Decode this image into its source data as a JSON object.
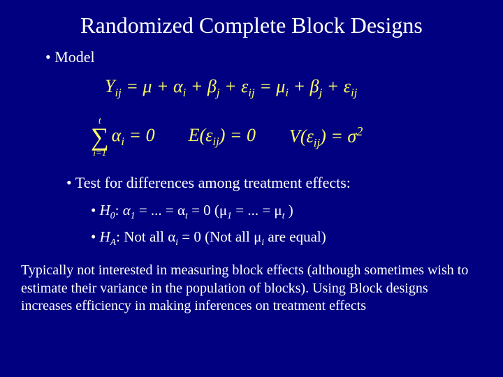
{
  "colors": {
    "background": "#000080",
    "title_text": "#ffffff",
    "body_text": "#ffffff",
    "equation_text": "#ffff66"
  },
  "typography": {
    "font_family": "Times New Roman",
    "title_fontsize": 32,
    "bullet_fontsize": 22,
    "equation_fontsize": 26,
    "body_fontsize": 20
  },
  "title": "Randomized Complete Block Designs",
  "bullets": {
    "model": "• Model",
    "test": "• Test for differences among treatment effects:",
    "h0_prefix": "• ",
    "h0_label": "H",
    "h0_sub": "0",
    "h0_colon": ": ",
    "h0_body": "α",
    "h0_sub1": "1",
    "h0_mid": " = ... = α",
    "h0_subt": "t",
    "h0_eq0": " = 0    (μ",
    "h0_mu1": "1",
    "h0_mumid": " = ... = μ",
    "h0_mut": "t",
    "h0_close": " )",
    "ha_prefix": "• ",
    "ha_label": "H",
    "ha_sub": "A",
    "ha_colon": ": Not all α",
    "ha_i": "i",
    "ha_eq": " = 0   (Not all μ",
    "ha_mi": "i",
    "ha_close": " are equal)"
  },
  "equations": {
    "eq1_Y": "Y",
    "eq1_ij": "ij",
    "eq1_a": " = μ + α",
    "eq1_i": "i",
    "eq1_b": " + β",
    "eq1_j": "j",
    "eq1_c": " + ε",
    "eq1_ij2": "ij",
    "eq1_d": " = μ",
    "eq1_i2": "i",
    "eq1_e": " + β",
    "eq1_j2": "j",
    "eq1_f": " + ε",
    "eq1_ij3": "ij",
    "sum_top": "t",
    "sum_bot": "i=1",
    "eq2_a": "α",
    "eq2_i": "i",
    "eq2_b": " = 0",
    "eq3_a": "E(ε",
    "eq3_ij": "ij",
    "eq3_b": ") = 0",
    "eq4_a": "V(ε",
    "eq4_ij": "ij",
    "eq4_b": ") = σ",
    "eq4_sup": "2"
  },
  "body": "Typically not interested in measuring block effects (although sometimes wish to estimate their variance in the population of blocks). Using Block designs increases efficiency in making inferences on treatment effects"
}
